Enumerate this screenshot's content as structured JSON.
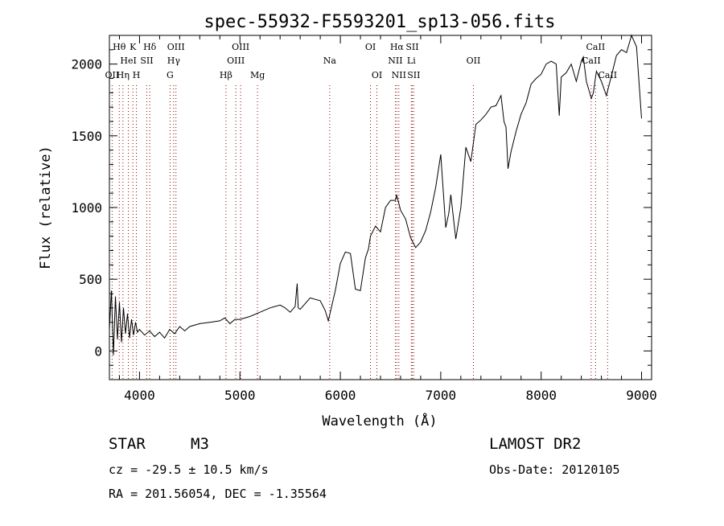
{
  "chart_data": {
    "type": "line",
    "title": "spec-55932-F5593201_sp13-056.fits",
    "xlabel": "Wavelength (Å)",
    "ylabel": "Flux (relative)",
    "xlim": [
      3700,
      9100
    ],
    "ylim": [
      -200,
      2200
    ],
    "xticks": [
      4000,
      5000,
      6000,
      7000,
      8000,
      9000
    ],
    "yticks": [
      0,
      500,
      1000,
      1500,
      2000
    ],
    "grid": false,
    "line_color": "#000000",
    "marker_color": "#8b0000",
    "series": [
      {
        "name": "flux",
        "x": [
          3700,
          3720,
          3740,
          3760,
          3780,
          3800,
          3820,
          3840,
          3860,
          3880,
          3900,
          3920,
          3940,
          3960,
          3980,
          4000,
          4050,
          4100,
          4150,
          4200,
          4250,
          4300,
          4350,
          4400,
          4450,
          4500,
          4600,
          4700,
          4800,
          4850,
          4900,
          4950,
          5000,
          5100,
          5200,
          5300,
          5400,
          5450,
          5500,
          5550,
          5570,
          5580,
          5600,
          5700,
          5800,
          5850,
          5880,
          5900,
          5950,
          6000,
          6050,
          6100,
          6150,
          6200,
          6250,
          6280,
          6300,
          6350,
          6400,
          6450,
          6500,
          6550,
          6560,
          6600,
          6650,
          6700,
          6750,
          6800,
          6850,
          6900,
          6950,
          7000,
          7050,
          7080,
          7100,
          7150,
          7200,
          7250,
          7300,
          7350,
          7400,
          7450,
          7500,
          7550,
          7600,
          7630,
          7650,
          7670,
          7700,
          7750,
          7800,
          7850,
          7900,
          7950,
          8000,
          8050,
          8100,
          8150,
          8180,
          8200,
          8250,
          8300,
          8350,
          8400,
          8420,
          8450,
          8500,
          8520,
          8550,
          8600,
          8650,
          8700,
          8750,
          8800,
          8850,
          8880,
          8900,
          8950,
          9000
        ],
        "y": [
          150,
          420,
          -30,
          380,
          80,
          340,
          60,
          300,
          120,
          260,
          90,
          220,
          110,
          200,
          130,
          150,
          110,
          140,
          100,
          130,
          90,
          150,
          120,
          170,
          140,
          170,
          190,
          200,
          210,
          230,
          190,
          220,
          220,
          240,
          270,
          300,
          320,
          300,
          270,
          310,
          470,
          300,
          290,
          370,
          350,
          280,
          210,
          270,
          420,
          610,
          690,
          680,
          430,
          420,
          650,
          710,
          800,
          870,
          830,
          1000,
          1050,
          1050,
          1090,
          980,
          920,
          790,
          720,
          760,
          840,
          970,
          1140,
          1370,
          860,
          960,
          1090,
          780,
          1000,
          1420,
          1320,
          1580,
          1610,
          1650,
          1700,
          1710,
          1780,
          1600,
          1560,
          1270,
          1390,
          1530,
          1650,
          1730,
          1860,
          1900,
          1930,
          2000,
          2020,
          2000,
          1640,
          1910,
          1940,
          2000,
          1880,
          2020,
          2050,
          1880,
          1760,
          1800,
          1950,
          1880,
          1780,
          1920,
          2060,
          2100,
          2080,
          2150,
          2200,
          2120,
          1620
        ]
      }
    ],
    "lines": [
      {
        "wl": 3727,
        "top": "",
        "mid": "",
        "bot": "OII"
      },
      {
        "wl": 3798,
        "top": "Hθ",
        "mid": "",
        "bot": ""
      },
      {
        "wl": 3835,
        "top": "",
        "mid": "",
        "bot": "Hη"
      },
      {
        "wl": 3889,
        "top": "",
        "mid": "HeI",
        "bot": ""
      },
      {
        "wl": 3934,
        "top": "K",
        "mid": "",
        "bot": ""
      },
      {
        "wl": 3969,
        "top": "",
        "mid": "",
        "bot": "H"
      },
      {
        "wl": 4072,
        "top": "",
        "mid": "SII",
        "bot": ""
      },
      {
        "wl": 4102,
        "top": "Hδ",
        "mid": "",
        "bot": ""
      },
      {
        "wl": 4304,
        "top": "",
        "mid": "",
        "bot": "G"
      },
      {
        "wl": 4340,
        "top": "",
        "mid": "Hγ",
        "bot": ""
      },
      {
        "wl": 4363,
        "top": "OIII",
        "mid": "",
        "bot": ""
      },
      {
        "wl": 4861,
        "top": "",
        "mid": "",
        "bot": "Hβ"
      },
      {
        "wl": 4959,
        "top": "",
        "mid": "OIII",
        "bot": ""
      },
      {
        "wl": 5007,
        "top": "OIII",
        "mid": "",
        "bot": ""
      },
      {
        "wl": 5175,
        "top": "",
        "mid": "",
        "bot": "Mg"
      },
      {
        "wl": 5894,
        "top": "",
        "mid": "Na",
        "bot": ""
      },
      {
        "wl": 6300,
        "top": "OI",
        "mid": "",
        "bot": ""
      },
      {
        "wl": 6364,
        "top": "",
        "mid": "",
        "bot": "OI"
      },
      {
        "wl": 6548,
        "top": "",
        "mid": "NII",
        "bot": ""
      },
      {
        "wl": 6563,
        "top": "Hα",
        "mid": "",
        "bot": ""
      },
      {
        "wl": 6583,
        "top": "",
        "mid": "",
        "bot": "NII"
      },
      {
        "wl": 6707,
        "top": "",
        "mid": "Li",
        "bot": ""
      },
      {
        "wl": 6716,
        "top": "SII",
        "mid": "",
        "bot": ""
      },
      {
        "wl": 6731,
        "top": "",
        "mid": "",
        "bot": "SII"
      },
      {
        "wl": 7325,
        "top": "",
        "mid": "OII",
        "bot": ""
      },
      {
        "wl": 8498,
        "top": "",
        "mid": "CaII",
        "bot": ""
      },
      {
        "wl": 8542,
        "top": "CaII",
        "mid": "",
        "bot": ""
      },
      {
        "wl": 8662,
        "top": "",
        "mid": "",
        "bot": "CaII"
      }
    ]
  },
  "info": {
    "object_class": "STAR",
    "subclass": "M3",
    "redshift": "cz = -29.5 ± 10.5 km/s",
    "coords": "RA = 201.56054, DEC =  -1.35564",
    "survey": "LAMOST DR2",
    "obs_date": "Obs-Date: 20120105"
  }
}
